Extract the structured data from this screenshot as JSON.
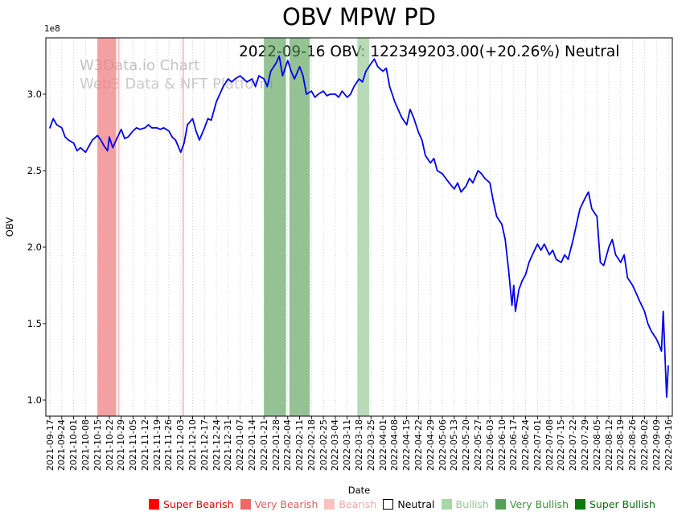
{
  "title": "OBV MPW PD",
  "subtitle": "2022-09-16 OBV: 122349203.00(+20.26%) Neutral",
  "watermark": {
    "line1": "W3Data.io Chart",
    "line2": "Web3 Data & NFT Platform"
  },
  "axes": {
    "x_label": "Date",
    "y_label": "OBV",
    "offset_label": "1e8"
  },
  "legend": [
    {
      "label": "Super Bearish",
      "color": "#fe0000",
      "text_color": "#e40000"
    },
    {
      "label": "Very Bearish",
      "color": "#ee6a6a",
      "text_color": "#d95f5f"
    },
    {
      "label": "Bearish",
      "color": "#ffc0c0",
      "text_color": "#f0a8a8"
    },
    {
      "label": "Neutral",
      "color": "#ffffff",
      "text_color": "#000000"
    },
    {
      "label": "Bullish",
      "color": "#a8d8a8",
      "text_color": "#93c893"
    },
    {
      "label": "Very Bullish",
      "color": "#55a055",
      "text_color": "#3f8f3f"
    },
    {
      "label": "Super Bullish",
      "color": "#0a7a0a",
      "text_color": "#067006"
    }
  ],
  "chart_data": {
    "type": "line",
    "title": "OBV MPW PD",
    "annotation": "2022-09-16 OBV: 122349203.00(+20.26%) Neutral",
    "xlabel": "Date",
    "ylabel": "OBV",
    "y_unit": "1e8",
    "ylim": [
      0.9,
      3.37
    ],
    "y_ticks": [
      1.0,
      1.5,
      2.0,
      2.5,
      3.0
    ],
    "x_start": "2021-09-17",
    "x_end": "2022-09-16",
    "grid": "vertical-dotted",
    "grid_color": "#bcbcbc",
    "x_tick_labels": [
      "2021-09-17",
      "2021-09-24",
      "2021-10-01",
      "2021-10-08",
      "2021-10-15",
      "2021-10-22",
      "2021-10-29",
      "2021-11-05",
      "2021-11-12",
      "2021-11-19",
      "2021-11-26",
      "2021-12-03",
      "2021-12-10",
      "2021-12-17",
      "2021-12-24",
      "2021-12-31",
      "2022-01-07",
      "2022-01-14",
      "2022-01-21",
      "2022-01-28",
      "2022-02-04",
      "2022-02-11",
      "2022-02-18",
      "2022-02-25",
      "2022-03-04",
      "2022-03-11",
      "2022-03-18",
      "2022-03-25",
      "2022-04-01",
      "2022-04-08",
      "2022-04-15",
      "2022-04-22",
      "2022-04-29",
      "2022-05-06",
      "2022-05-13",
      "2022-05-20",
      "2022-05-27",
      "2022-06-03",
      "2022-06-10",
      "2022-06-17",
      "2022-06-24",
      "2022-07-01",
      "2022-07-08",
      "2022-07-15",
      "2022-07-22",
      "2022-07-29",
      "2022-08-05",
      "2022-08-12",
      "2022-08-19",
      "2022-08-26",
      "2022-09-02",
      "2022-09-09",
      "2022-09-16"
    ],
    "latest": {
      "date": "2022-09-16",
      "obv": 122349203.0,
      "change_pct": "+20.26%",
      "signal": "Neutral"
    },
    "bands": [
      {
        "start": "2021-10-15",
        "end": "2021-10-26",
        "label": "Very Bearish",
        "color": "#f08080",
        "opacity": 0.75
      },
      {
        "start": "2021-10-27",
        "end": "2021-10-28",
        "label": "Bearish",
        "color": "#ffb6b6",
        "opacity": 0.85
      },
      {
        "start": "2021-12-04",
        "end": "2021-12-05",
        "label": "Bearish",
        "color": "#ffb6b6",
        "opacity": 0.85
      },
      {
        "start": "2022-01-21",
        "end": "2022-02-03",
        "label": "Very Bullish",
        "color": "#4c9a4c",
        "opacity": 0.6
      },
      {
        "start": "2022-02-05",
        "end": "2022-02-17",
        "label": "Very Bullish",
        "color": "#4c9a4c",
        "opacity": 0.6
      },
      {
        "start": "2022-03-17",
        "end": "2022-03-24",
        "label": "Bullish",
        "color": "#98cc98",
        "opacity": 0.7
      }
    ],
    "series": [
      {
        "name": "OBV",
        "color": "#0000ee",
        "x_days": [
          0,
          2,
          4,
          7,
          9,
          11,
          14,
          16,
          18,
          21,
          23,
          25,
          28,
          30,
          32,
          34,
          35,
          37,
          39,
          42,
          44,
          46,
          49,
          51,
          53,
          56,
          58,
          60,
          63,
          65,
          67,
          70,
          72,
          74,
          77,
          79,
          81,
          84,
          86,
          88,
          91,
          93,
          95,
          98,
          100,
          102,
          105,
          107,
          109,
          112,
          114,
          116,
          119,
          121,
          123,
          126,
          128,
          130,
          133,
          135,
          137,
          140,
          142,
          144,
          147,
          149,
          151,
          154,
          156,
          158,
          161,
          163,
          165,
          168,
          170,
          172,
          175,
          177,
          179,
          182,
          184,
          186,
          189,
          191,
          193,
          196,
          198,
          200,
          203,
          205,
          207,
          210,
          212,
          214,
          217,
          219,
          221,
          224,
          226,
          228,
          231,
          233,
          235,
          238,
          240,
          242,
          245,
          247,
          249,
          252,
          254,
          256,
          259,
          261,
          263,
          266,
          268,
          270,
          272,
          273,
          274,
          276,
          278,
          280,
          282,
          284,
          287,
          289,
          291,
          294,
          296,
          298,
          301,
          303,
          305,
          308,
          310,
          312,
          315,
          317,
          319,
          322,
          324,
          326,
          329,
          331,
          333,
          336,
          338,
          340,
          343,
          345,
          347,
          350,
          352,
          354,
          357,
          359,
          360,
          361,
          362,
          363,
          364
        ],
        "values_1e8": [
          2.78,
          2.84,
          2.8,
          2.78,
          2.72,
          2.7,
          2.68,
          2.63,
          2.65,
          2.62,
          2.66,
          2.7,
          2.73,
          2.7,
          2.66,
          2.63,
          2.72,
          2.65,
          2.7,
          2.77,
          2.71,
          2.72,
          2.76,
          2.78,
          2.77,
          2.78,
          2.8,
          2.78,
          2.78,
          2.77,
          2.78,
          2.76,
          2.72,
          2.7,
          2.62,
          2.68,
          2.8,
          2.84,
          2.76,
          2.7,
          2.78,
          2.84,
          2.83,
          2.95,
          3.0,
          3.05,
          3.1,
          3.08,
          3.1,
          3.12,
          3.1,
          3.08,
          3.1,
          3.05,
          3.12,
          3.1,
          3.05,
          3.15,
          3.2,
          3.25,
          3.12,
          3.22,
          3.15,
          3.1,
          3.18,
          3.12,
          3.0,
          3.02,
          2.98,
          3.0,
          3.02,
          2.99,
          3.0,
          3.0,
          2.98,
          3.02,
          2.98,
          3.0,
          3.05,
          3.1,
          3.08,
          3.15,
          3.2,
          3.23,
          3.18,
          3.15,
          3.17,
          3.05,
          2.95,
          2.9,
          2.85,
          2.8,
          2.9,
          2.85,
          2.75,
          2.7,
          2.6,
          2.55,
          2.58,
          2.5,
          2.48,
          2.45,
          2.42,
          2.38,
          2.42,
          2.36,
          2.4,
          2.45,
          2.42,
          2.5,
          2.48,
          2.45,
          2.42,
          2.3,
          2.2,
          2.15,
          2.05,
          1.85,
          1.62,
          1.75,
          1.58,
          1.72,
          1.78,
          1.82,
          1.9,
          1.95,
          2.02,
          1.98,
          2.02,
          1.95,
          1.98,
          1.92,
          1.9,
          1.95,
          1.92,
          2.05,
          2.15,
          2.25,
          2.32,
          2.36,
          2.25,
          2.2,
          1.9,
          1.88,
          2.0,
          2.05,
          1.95,
          1.9,
          1.95,
          1.8,
          1.75,
          1.7,
          1.65,
          1.58,
          1.5,
          1.45,
          1.4,
          1.35,
          1.32,
          1.58,
          1.3,
          1.02,
          1.223
        ]
      }
    ]
  }
}
